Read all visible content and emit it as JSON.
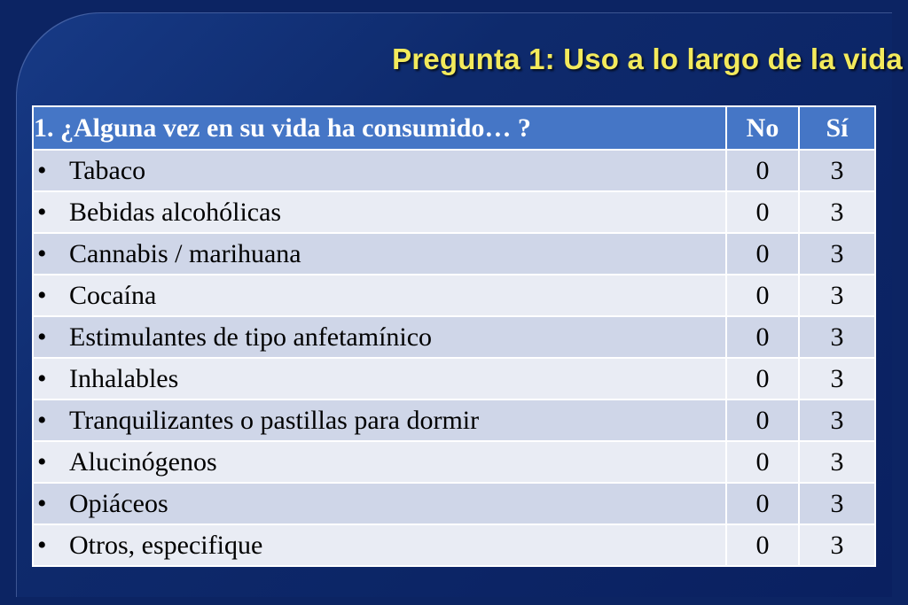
{
  "slide": {
    "title": "Pregunta 1: Uso a lo largo de la vida"
  },
  "table": {
    "headers": {
      "question": "1. ¿Alguna vez en su vida ha consumido… ?",
      "no": "No",
      "si": "Sí"
    },
    "rows": [
      {
        "bullet": "•",
        "label": "Tabaco",
        "no": "0",
        "si": "3"
      },
      {
        "bullet": "•",
        "label": "Bebidas alcohólicas",
        "no": "0",
        "si": "3"
      },
      {
        "bullet": "•",
        "label": "Cannabis / marihuana",
        "no": "0",
        "si": "3"
      },
      {
        "bullet": "•",
        "label": "Cocaína",
        "no": "0",
        "si": "3"
      },
      {
        "bullet": "•",
        "label": "Estimulantes de tipo anfetamínico",
        "no": "0",
        "si": "3"
      },
      {
        "bullet": "•",
        "label": "Inhalables",
        "no": "0",
        "si": "3"
      },
      {
        "bullet": "•",
        "label": "Tranquilizantes o pastillas para dormir",
        "no": "0",
        "si": "3"
      },
      {
        "bullet": "•",
        "label": "Alucinógenos",
        "no": "0",
        "si": "3"
      },
      {
        "bullet": "•",
        "label": "Opiáceos",
        "no": "0",
        "si": "3"
      },
      {
        "bullet": "•",
        "label": "Otros, especifique",
        "no": "0",
        "si": "3"
      }
    ]
  }
}
